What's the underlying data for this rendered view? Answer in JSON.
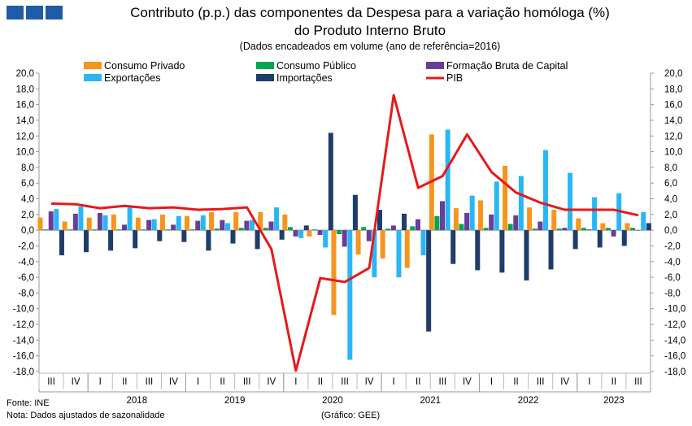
{
  "header": {
    "title_line1": "Contributo (p.p.) das componentes da Despesa para a variação homóloga (%)",
    "title_line2": "do Produto Interno Bruto",
    "subtitle": "(Dados encadeados em volume (ano de referência=2016)"
  },
  "footer": {
    "source": "Fonte: INE",
    "note": "Nota: Dados ajustados de sazonalidade",
    "credit": "(Gráfico: GEE)"
  },
  "colors": {
    "consumo_privado": "#f7941d",
    "consumo_publico": "#00a651",
    "fbc": "#6a3d9a",
    "exportacoes": "#29b6f6",
    "importacoes": "#1f3d6b",
    "pib": "#e41a1c"
  },
  "chart_data": {
    "type": "bar",
    "ylim": [
      -18,
      20
    ],
    "yticks": [
      "20,0",
      "18,0",
      "16,0",
      "14,0",
      "12,0",
      "10,0",
      "8,0",
      "6,0",
      "4,0",
      "2,0",
      "0,0",
      "-2,0",
      "-4,0",
      "-6,0",
      "-8,0",
      "-10,0",
      "-12,0",
      "-14,0",
      "-16,0",
      "-18,0"
    ],
    "categories": [
      "III",
      "IV",
      "I",
      "II",
      "III",
      "IV",
      "I",
      "II",
      "III",
      "IV",
      "I",
      "II",
      "III",
      "IV",
      "I",
      "II",
      "III",
      "IV",
      "I",
      "II",
      "III",
      "IV",
      "I",
      "II",
      "III"
    ],
    "year_labels": [
      {
        "label": "2018",
        "start": 2,
        "end": 5
      },
      {
        "label": "2019",
        "start": 6,
        "end": 9
      },
      {
        "label": "2020",
        "start": 10,
        "end": 13
      },
      {
        "label": "2021",
        "start": 14,
        "end": 17
      },
      {
        "label": "2022",
        "start": 18,
        "end": 21
      },
      {
        "label": "2023",
        "start": 22,
        "end": 24
      }
    ],
    "series": [
      {
        "name": "Consumo Privado",
        "kind": "bar",
        "color_key": "consumo_privado",
        "values": [
          1.6,
          1.1,
          1.6,
          2.0,
          1.6,
          2.0,
          1.8,
          2.3,
          2.3,
          2.3,
          2.0,
          -0.8,
          -10.8,
          -3.1,
          -3.6,
          -4.8,
          12.2,
          2.8,
          3.8,
          8.2,
          2.9,
          2.6,
          1.5,
          0.9,
          0.9
        ]
      },
      {
        "name": "Consumo Público",
        "kind": "bar",
        "color_key": "consumo_publico",
        "values": [
          0.1,
          0.1,
          0.1,
          0.1,
          0.1,
          0.1,
          0.1,
          0.2,
          0.3,
          0.3,
          0.4,
          0.1,
          -0.5,
          0.4,
          0.2,
          0.5,
          1.8,
          0.8,
          0.3,
          0.8,
          0.2,
          0.2,
          0.3,
          0.3,
          0.3
        ]
      },
      {
        "name": "Formação Bruta de Capital",
        "kind": "bar",
        "color_key": "fbc",
        "values": [
          2.4,
          2.1,
          2.2,
          0.7,
          1.3,
          0.7,
          1.2,
          1.3,
          1.2,
          1.1,
          -0.8,
          -0.6,
          -2.1,
          -1.4,
          0.6,
          1.4,
          3.7,
          2.2,
          2.0,
          1.9,
          1.1,
          0.3,
          0.1,
          -0.8,
          0.0
        ]
      },
      {
        "name": "Exportações",
        "kind": "bar",
        "color_key": "exportacoes",
        "values": [
          2.7,
          3.0,
          1.9,
          2.9,
          1.4,
          1.8,
          1.9,
          0.9,
          1.3,
          2.9,
          -1.0,
          -2.2,
          -16.5,
          -6.0,
          -6.0,
          -3.2,
          12.8,
          4.4,
          6.2,
          6.9,
          10.2,
          7.3,
          4.2,
          4.7,
          2.3
        ]
      },
      {
        "name": "Importações",
        "kind": "bar",
        "color_key": "importacoes",
        "values": [
          -3.2,
          -2.8,
          -2.6,
          -2.3,
          -1.4,
          -1.5,
          -2.6,
          -1.7,
          -2.4,
          -1.2,
          0.6,
          12.4,
          4.5,
          2.6,
          2.1,
          -12.9,
          -4.3,
          -5.1,
          -5.4,
          -6.4,
          -5.0,
          -2.4,
          -2.2,
          -2.0,
          0.9
        ]
      },
      {
        "name": "PIB",
        "kind": "line",
        "color_key": "pib",
        "values": [
          3.4,
          3.3,
          2.8,
          3.1,
          2.8,
          2.9,
          2.6,
          2.7,
          2.9,
          -2.4,
          -17.9,
          -6.1,
          -6.6,
          -4.8,
          17.2,
          5.4,
          6.9,
          12.2,
          7.4,
          4.8,
          3.5,
          2.6,
          2.6,
          2.6,
          1.9
        ]
      }
    ],
    "legend": "top"
  }
}
